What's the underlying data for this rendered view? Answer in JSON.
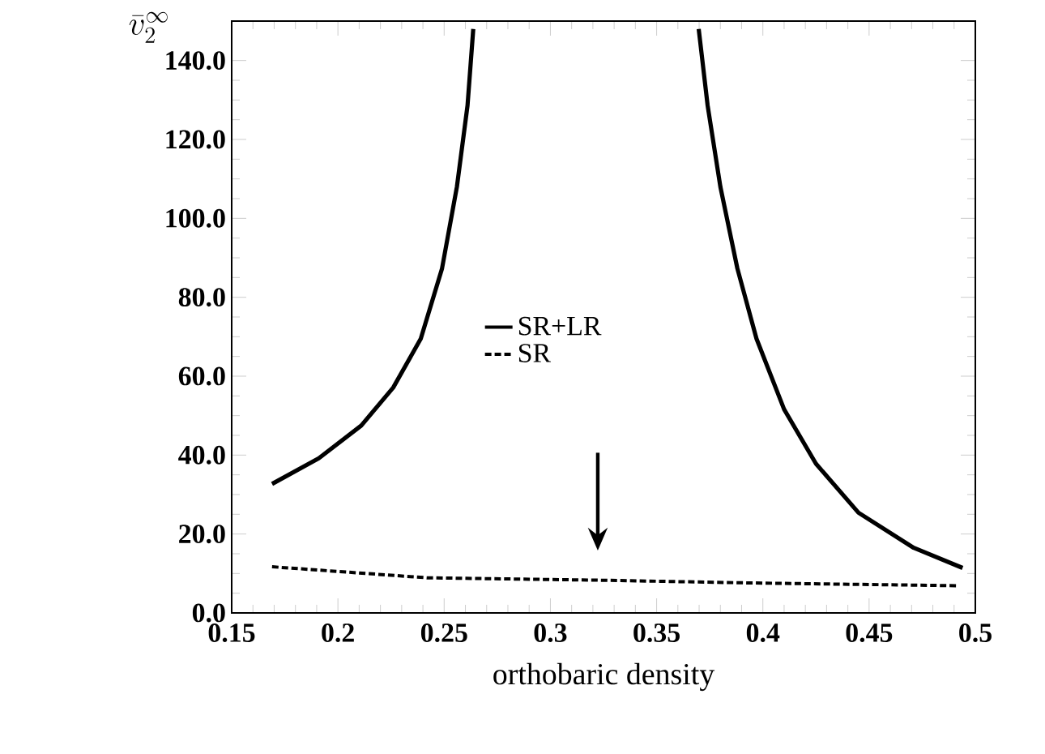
{
  "chart_data": {
    "type": "line",
    "xlabel": "orthobaric density",
    "ylabel": "\\bar{v}_2^{\\infty}",
    "xlim": [
      0.15,
      0.5
    ],
    "ylim": [
      0,
      150
    ],
    "xticks": [
      0.15,
      0.2,
      0.25,
      0.3,
      0.35,
      0.4,
      0.45,
      0.5
    ],
    "yticks": [
      {
        "value": 0,
        "label": "0.0"
      },
      {
        "value": 20,
        "label": "20.0"
      },
      {
        "value": 40,
        "label": "40.0"
      },
      {
        "value": 60,
        "label": "60.0"
      },
      {
        "value": 80,
        "label": "80.0"
      },
      {
        "value": 100,
        "label": "100.0"
      },
      {
        "value": 120,
        "label": "120.0"
      },
      {
        "value": 140,
        "label": "140.0"
      }
    ],
    "legend": "center",
    "grid": false,
    "marker": "none",
    "series": [
      {
        "name": "SR+LR",
        "color": "#000000",
        "line_style": "solid",
        "x": [
          0.169,
          0.191,
          0.211,
          0.226,
          0.239,
          0.249,
          0.256,
          0.261,
          0.2637,
          null,
          0.3698,
          0.374,
          0.38,
          0.388,
          0.397,
          0.41,
          0.425,
          0.445,
          0.471,
          0.494
        ],
        "values": [
          32.7,
          39.2,
          47.5,
          57.1,
          69.5,
          87.3,
          108,
          128.6,
          148,
          null,
          148,
          128.6,
          108,
          87.3,
          69.5,
          51.6,
          37.8,
          25.4,
          16.5,
          11.4
        ]
      },
      {
        "name": "SR",
        "color": "#000000",
        "line_style": "dashed",
        "x": [
          0.169,
          0.242,
          0.323,
          0.394,
          0.491
        ],
        "values": [
          11.7,
          8.9,
          8.3,
          7.6,
          6.9
        ]
      }
    ]
  }
}
